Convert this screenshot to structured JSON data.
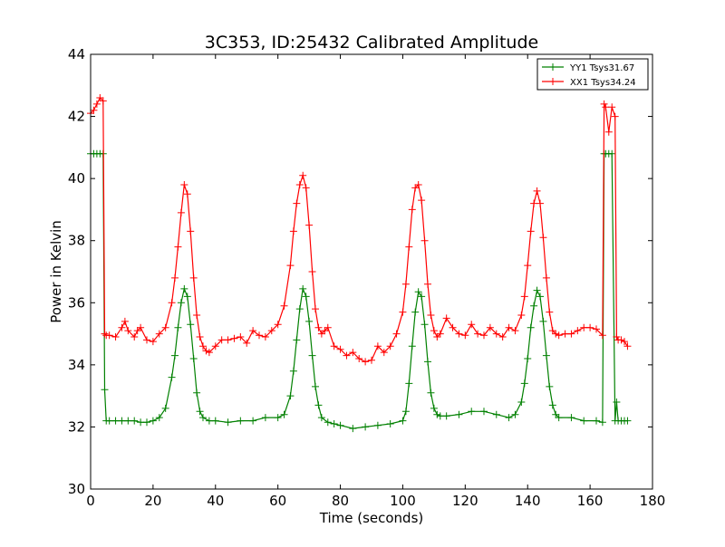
{
  "chart_data": {
    "type": "line",
    "title": "3C353, ID:25432 Calibrated Amplitude",
    "xlabel": "Time (seconds)",
    "ylabel": "Power in Kelvin",
    "xlim": [
      0,
      180
    ],
    "ylim": [
      30,
      44
    ],
    "xticks": [
      0,
      20,
      40,
      60,
      80,
      100,
      120,
      140,
      160,
      180
    ],
    "yticks": [
      30,
      32,
      34,
      36,
      38,
      40,
      42,
      44
    ],
    "grid": false,
    "legend_position": "top-right",
    "marker": "plus",
    "series": [
      {
        "name": "YY1 Tsys31.67",
        "color": "#008000",
        "x": [
          0,
          1,
          2,
          3,
          4,
          4.5,
          5,
          6,
          8,
          10,
          12,
          14,
          16,
          18,
          20,
          22,
          24,
          26,
          27,
          28,
          29,
          30,
          31,
          32,
          33,
          34,
          35,
          36,
          38,
          40,
          44,
          48,
          52,
          56,
          60,
          62,
          64,
          65,
          66,
          67,
          68,
          69,
          70,
          71,
          72,
          73,
          74,
          76,
          78,
          80,
          84,
          88,
          92,
          96,
          100,
          101,
          102,
          103,
          104,
          105,
          106,
          107,
          108,
          109,
          110,
          111,
          112,
          114,
          118,
          122,
          126,
          130,
          134,
          136,
          138,
          139,
          140,
          141,
          142,
          143,
          144,
          145,
          146,
          147,
          148,
          149,
          150,
          154,
          158,
          162,
          164,
          164.5,
          165,
          166,
          167,
          168,
          168.5,
          169,
          170,
          171,
          172
        ],
        "values": [
          40.8,
          40.8,
          40.8,
          40.8,
          40.8,
          33.2,
          32.2,
          32.2,
          32.2,
          32.2,
          32.2,
          32.2,
          32.15,
          32.15,
          32.2,
          32.3,
          32.6,
          33.6,
          34.3,
          35.2,
          36.0,
          36.45,
          36.2,
          35.3,
          34.2,
          33.1,
          32.5,
          32.3,
          32.2,
          32.2,
          32.15,
          32.2,
          32.2,
          32.3,
          32.3,
          32.4,
          33.0,
          33.8,
          34.8,
          35.8,
          36.45,
          36.2,
          35.4,
          34.3,
          33.3,
          32.7,
          32.3,
          32.15,
          32.1,
          32.05,
          31.95,
          32.0,
          32.05,
          32.1,
          32.2,
          32.5,
          33.4,
          34.6,
          35.7,
          36.35,
          36.2,
          35.3,
          34.1,
          33.1,
          32.6,
          32.4,
          32.35,
          32.35,
          32.4,
          32.5,
          32.5,
          32.4,
          32.3,
          32.4,
          32.8,
          33.4,
          34.2,
          35.2,
          35.9,
          36.4,
          36.2,
          35.4,
          34.3,
          33.3,
          32.7,
          32.4,
          32.3,
          32.3,
          32.2,
          32.2,
          32.15,
          40.8,
          40.8,
          40.8,
          40.8,
          32.2,
          32.8,
          32.2,
          32.2,
          32.2,
          32.2
        ]
      },
      {
        "name": "XX1 Tsys34.24",
        "color": "#ff0000",
        "x": [
          0,
          1,
          2,
          3,
          4,
          4.5,
          5,
          6,
          8,
          10,
          11,
          12,
          14,
          15,
          16,
          18,
          20,
          22,
          24,
          26,
          27,
          28,
          29,
          30,
          31,
          32,
          33,
          34,
          35,
          36,
          37,
          38,
          40,
          42,
          44,
          46,
          48,
          50,
          52,
          54,
          56,
          58,
          60,
          62,
          64,
          65,
          66,
          67,
          68,
          69,
          70,
          71,
          72,
          73,
          74,
          75,
          76,
          78,
          80,
          82,
          84,
          86,
          88,
          90,
          92,
          94,
          96,
          98,
          100,
          101,
          102,
          103,
          104,
          105,
          106,
          107,
          108,
          109,
          110,
          111,
          112,
          114,
          116,
          118,
          120,
          122,
          124,
          126,
          128,
          130,
          132,
          134,
          136,
          138,
          139,
          140,
          141,
          142,
          143,
          144,
          145,
          146,
          147,
          148,
          149,
          150,
          152,
          154,
          156,
          158,
          160,
          162,
          164,
          164.5,
          165,
          166,
          167,
          168,
          168.5,
          169,
          170,
          171,
          172
        ],
        "values": [
          42.1,
          42.2,
          42.4,
          42.6,
          42.5,
          35.0,
          34.95,
          34.95,
          34.9,
          35.2,
          35.4,
          35.1,
          34.9,
          35.1,
          35.2,
          34.8,
          34.75,
          35.0,
          35.2,
          36.0,
          36.8,
          37.8,
          38.9,
          39.8,
          39.5,
          38.3,
          36.8,
          35.6,
          34.9,
          34.6,
          34.45,
          34.4,
          34.6,
          34.8,
          34.8,
          34.85,
          34.9,
          34.7,
          35.1,
          34.95,
          34.9,
          35.1,
          35.3,
          35.9,
          37.2,
          38.3,
          39.2,
          39.8,
          40.1,
          39.7,
          38.5,
          37.0,
          35.8,
          35.2,
          35.0,
          35.1,
          35.2,
          34.6,
          34.5,
          34.3,
          34.4,
          34.2,
          34.1,
          34.15,
          34.6,
          34.4,
          34.6,
          35.0,
          35.7,
          36.6,
          37.8,
          39.0,
          39.7,
          39.8,
          39.3,
          38.0,
          36.6,
          35.6,
          35.1,
          34.9,
          35.0,
          35.5,
          35.2,
          35.0,
          34.95,
          35.3,
          35.0,
          34.95,
          35.2,
          35.0,
          34.9,
          35.2,
          35.1,
          35.6,
          36.2,
          37.2,
          38.3,
          39.2,
          39.6,
          39.2,
          38.1,
          36.8,
          35.7,
          35.1,
          35.0,
          34.95,
          35.0,
          35.0,
          35.1,
          35.2,
          35.2,
          35.15,
          34.95,
          42.4,
          42.3,
          41.5,
          42.3,
          42.0,
          34.9,
          34.8,
          34.8,
          34.75,
          34.6
        ]
      }
    ]
  }
}
